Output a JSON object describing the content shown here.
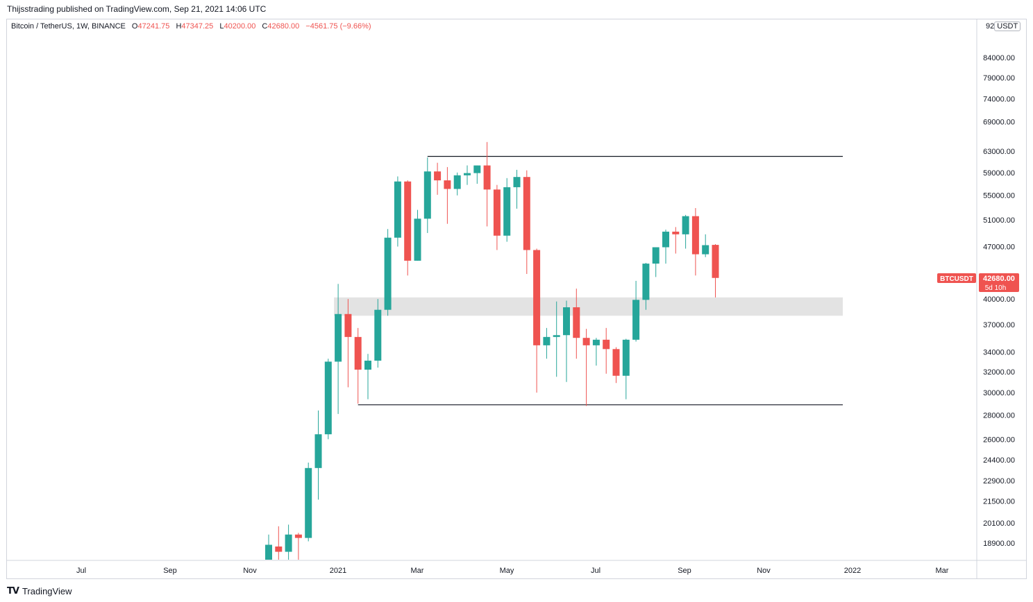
{
  "header": {
    "published": "Thijsstrading published on TradingView.com, Sep 21, 2021 14:06 UTC"
  },
  "legend": {
    "symbol": "Bitcoin / TetherUS, 1W, BINANCE",
    "o_label": "O",
    "o_value": "47241.75",
    "h_label": "H",
    "h_value": "47347.25",
    "l_label": "L",
    "l_value": "40200.00",
    "c_label": "C",
    "c_value": "42680.00",
    "change": "−4561.75 (−9.66%)"
  },
  "currency": {
    "partial_tick": "92",
    "unit": "USDT"
  },
  "price_tag": {
    "symbol": "BTCUSDT",
    "price": "42680.00",
    "countdown": "5d 10h"
  },
  "footer": {
    "brand": "TradingView"
  },
  "colors": {
    "up": "#26a69a",
    "down": "#ef5350",
    "zone": "#e3e3e3",
    "line": "#131722"
  },
  "chart_data": {
    "type": "candlestick",
    "scale": "log",
    "ylim": [
      17700,
      95000
    ],
    "y_ticks": [
      84000,
      79000,
      74000,
      69000,
      63000,
      59000,
      55000,
      51000,
      47000,
      40000,
      37000,
      34000,
      32000,
      30000,
      28000,
      26000,
      24400,
      22900,
      21500,
      20100,
      18900
    ],
    "x_ticks": [
      "Jul",
      "Sep",
      "Nov",
      "2021",
      "Mar",
      "May",
      "Jul",
      "Sep",
      "Nov",
      "2022",
      "Mar"
    ],
    "candles": [
      {
        "o": 17800,
        "h": 19400,
        "l": 17700,
        "c": 18800
      },
      {
        "o": 18700,
        "h": 19900,
        "l": 17700,
        "c": 18400
      },
      {
        "o": 18400,
        "h": 20000,
        "l": 17700,
        "c": 19400
      },
      {
        "o": 19400,
        "h": 19500,
        "l": 17700,
        "c": 19200
      },
      {
        "o": 19200,
        "h": 24200,
        "l": 19000,
        "c": 23800
      },
      {
        "o": 23800,
        "h": 28400,
        "l": 21600,
        "c": 26400
      },
      {
        "o": 26400,
        "h": 33300,
        "l": 26000,
        "c": 33000
      },
      {
        "o": 33000,
        "h": 41900,
        "l": 28100,
        "c": 38200
      },
      {
        "o": 38200,
        "h": 40000,
        "l": 30500,
        "c": 35600
      },
      {
        "o": 35600,
        "h": 36600,
        "l": 29000,
        "c": 32200
      },
      {
        "o": 32200,
        "h": 33800,
        "l": 29400,
        "c": 33100
      },
      {
        "o": 33100,
        "h": 40000,
        "l": 32400,
        "c": 38700
      },
      {
        "o": 38700,
        "h": 49600,
        "l": 38000,
        "c": 48300
      },
      {
        "o": 48300,
        "h": 58300,
        "l": 47000,
        "c": 57400
      },
      {
        "o": 57400,
        "h": 57600,
        "l": 43000,
        "c": 45000
      },
      {
        "o": 45000,
        "h": 52600,
        "l": 45000,
        "c": 51200
      },
      {
        "o": 51200,
        "h": 61800,
        "l": 49000,
        "c": 59200
      },
      {
        "o": 59200,
        "h": 60800,
        "l": 55100,
        "c": 57600
      },
      {
        "o": 57600,
        "h": 60000,
        "l": 50400,
        "c": 56100
      },
      {
        "o": 56100,
        "h": 59000,
        "l": 55000,
        "c": 58500
      },
      {
        "o": 58500,
        "h": 60300,
        "l": 56800,
        "c": 58900
      },
      {
        "o": 58900,
        "h": 60300,
        "l": 57000,
        "c": 60300
      },
      {
        "o": 60300,
        "h": 64800,
        "l": 50000,
        "c": 56000
      },
      {
        "o": 56000,
        "h": 56800,
        "l": 46500,
        "c": 48600
      },
      {
        "o": 48600,
        "h": 58000,
        "l": 47700,
        "c": 56400
      },
      {
        "o": 56400,
        "h": 59500,
        "l": 52800,
        "c": 58200
      },
      {
        "o": 58200,
        "h": 59400,
        "l": 43200,
        "c": 46500
      },
      {
        "o": 46500,
        "h": 46700,
        "l": 30000,
        "c": 34700
      },
      {
        "o": 34700,
        "h": 36600,
        "l": 33300,
        "c": 35600
      },
      {
        "o": 35600,
        "h": 39700,
        "l": 31500,
        "c": 35800
      },
      {
        "o": 35800,
        "h": 39800,
        "l": 31000,
        "c": 39000
      },
      {
        "o": 39000,
        "h": 41300,
        "l": 33300,
        "c": 35500
      },
      {
        "o": 35500,
        "h": 36500,
        "l": 28800,
        "c": 34700
      },
      {
        "o": 34700,
        "h": 35500,
        "l": 32600,
        "c": 35300
      },
      {
        "o": 35300,
        "h": 36600,
        "l": 31800,
        "c": 34300
      },
      {
        "o": 34300,
        "h": 34500,
        "l": 30900,
        "c": 31600
      },
      {
        "o": 31600,
        "h": 35400,
        "l": 29400,
        "c": 35300
      },
      {
        "o": 35300,
        "h": 42300,
        "l": 35100,
        "c": 39900
      },
      {
        "o": 39900,
        "h": 44700,
        "l": 38700,
        "c": 44600
      },
      {
        "o": 44600,
        "h": 46700,
        "l": 42800,
        "c": 46900
      },
      {
        "o": 46900,
        "h": 49500,
        "l": 44600,
        "c": 49200
      },
      {
        "o": 49200,
        "h": 49900,
        "l": 46000,
        "c": 48800
      },
      {
        "o": 48800,
        "h": 51800,
        "l": 46700,
        "c": 51600
      },
      {
        "o": 51600,
        "h": 52900,
        "l": 43000,
        "c": 45900
      },
      {
        "o": 45900,
        "h": 48800,
        "l": 45500,
        "c": 47200
      },
      {
        "o": 47241.75,
        "h": 47347.25,
        "l": 40200,
        "c": 42680
      }
    ],
    "first_candle_x": 387,
    "candle_spacing": 14.3,
    "resistance_line": {
      "price": 62000,
      "from_candle": 16
    },
    "support_line": {
      "price": 28900,
      "from_candle": 9
    },
    "zone": {
      "low": 38000,
      "high": 40200,
      "from_candle": 7
    },
    "zone_end_x": 1214
  }
}
